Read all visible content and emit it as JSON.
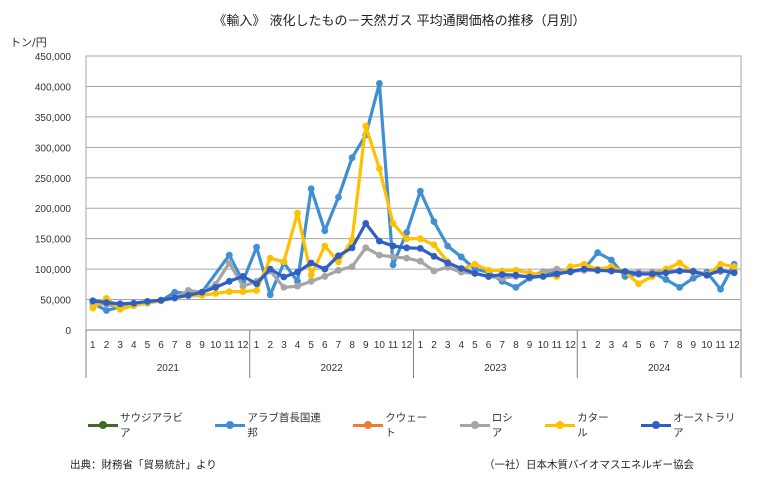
{
  "chart_data": {
    "type": "line",
    "title": "《輸入》 液化したもの－天然ガス  平均通関価格の推移（月別）",
    "ylabel": "トン/円",
    "xlabel": "",
    "ylim": [
      0,
      450000
    ],
    "yticks": [
      0,
      50000,
      100000,
      150000,
      200000,
      250000,
      300000,
      350000,
      400000,
      450000
    ],
    "ytick_labels": [
      "0",
      "50,000",
      "100,000",
      "150,000",
      "200,000",
      "250,000",
      "300,000",
      "350,000",
      "400,000",
      "450,000"
    ],
    "grid": true,
    "legend_position": "bottom",
    "years": [
      "2021",
      "2022",
      "2023",
      "2024"
    ],
    "months": [
      "1",
      "2",
      "3",
      "4",
      "5",
      "6",
      "7",
      "8",
      "9",
      "10",
      "11",
      "12"
    ],
    "series": [
      {
        "name": "サウジアラビア",
        "color": "#3f6b22",
        "values": []
      },
      {
        "name": "アラブ首長国連邦",
        "color": "#3f8fd2",
        "values": [
          44000,
          32000,
          38000,
          40000,
          46000,
          48000,
          62000,
          60000,
          62000,
          null,
          123000,
          80000,
          136000,
          58000,
          110000,
          80000,
          232000,
          163000,
          218000,
          283000,
          320000,
          405000,
          107000,
          160000,
          228000,
          178000,
          138000,
          120000,
          100000,
          95000,
          80000,
          70000,
          85000,
          90000,
          95000,
          95000,
          100000,
          127000,
          115000,
          88000,
          92000,
          95000,
          83000,
          70000,
          85000,
          95000,
          67000,
          108000
        ]
      },
      {
        "name": "クウェート",
        "color": "#ed7d31",
        "values": []
      },
      {
        "name": "ロシア",
        "color": "#a5a5a5",
        "values": [
          45000,
          42000,
          38000,
          40000,
          44000,
          48000,
          52000,
          65000,
          62000,
          75000,
          110000,
          72000,
          80000,
          97000,
          70000,
          72000,
          80000,
          88000,
          98000,
          104000,
          135000,
          123000,
          120000,
          118000,
          113000,
          97000,
          103000,
          95000,
          93000,
          88000,
          85000,
          88000,
          88000,
          96000,
          100000,
          96000,
          98000,
          98000,
          97000,
          96000,
          95000,
          95000,
          97000,
          97000,
          97000,
          92000,
          96000,
          96000
        ]
      },
      {
        "name": "カタール",
        "color": "#ffc000",
        "values": [
          36000,
          52000,
          34000,
          40000,
          45000,
          48000,
          53000,
          56000,
          57000,
          60000,
          63000,
          63000,
          65000,
          118000,
          112000,
          192000,
          90000,
          138000,
          112000,
          148000,
          335000,
          265000,
          175000,
          150000,
          150000,
          140000,
          112000,
          100000,
          108000,
          98000,
          97000,
          98000,
          94000,
          90000,
          88000,
          104000,
          108000,
          100000,
          104000,
          95000,
          76000,
          88000,
          100000,
          110000,
          95000,
          90000,
          108000,
          104000
        ]
      },
      {
        "name": "オーストラリア",
        "color": "#2f5fc4",
        "values": [
          48000,
          45000,
          43000,
          44000,
          47000,
          49000,
          53000,
          57000,
          62000,
          70000,
          80000,
          88000,
          76000,
          100000,
          87000,
          95000,
          110000,
          100000,
          122000,
          135000,
          175000,
          146000,
          138000,
          135000,
          134000,
          121000,
          110000,
          101000,
          93000,
          88000,
          91000,
          90000,
          87000,
          88000,
          92000,
          96000,
          100000,
          98000,
          97000,
          96000,
          92000,
          92000,
          94000,
          97000,
          96000,
          90000,
          98000,
          94000
        ]
      }
    ]
  },
  "legend": {
    "items": [
      {
        "label": "サウジアラビア",
        "color": "#3f6b22"
      },
      {
        "label": "アラブ首長国連邦",
        "color": "#3f8fd2"
      },
      {
        "label": "クウェート",
        "color": "#ed7d31"
      },
      {
        "label": "ロシア",
        "color": "#a5a5a5"
      },
      {
        "label": "カタール",
        "color": "#ffc000"
      },
      {
        "label": "オーストラリア",
        "color": "#2f5fc4"
      }
    ]
  },
  "footer": {
    "source": "出典：財務省「貿易統計」より",
    "credit": "（一社）日本木質バイオマスエネルギー協会"
  }
}
